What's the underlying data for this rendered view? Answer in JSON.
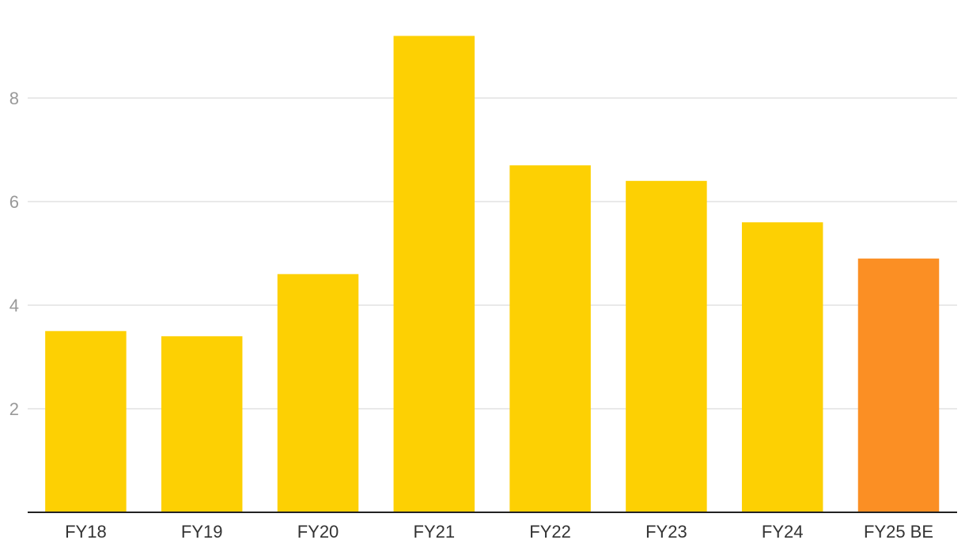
{
  "chart_data": {
    "type": "bar",
    "title": "",
    "xlabel": "",
    "ylabel": "",
    "categories": [
      "FY18",
      "FY19",
      "FY20",
      "FY21",
      "FY22",
      "FY23",
      "FY24",
      "FY25 BE"
    ],
    "values": [
      3.5,
      3.4,
      4.6,
      9.2,
      6.7,
      6.4,
      5.6,
      4.9
    ],
    "ylim": [
      0,
      9.8
    ],
    "yticks": [
      2,
      4,
      6,
      8
    ],
    "grid": true,
    "legend": "none",
    "colors": {
      "default_bar": "#fdd003",
      "highlight_bar": "#fb8f24",
      "highlight_category": "FY25 BE"
    }
  }
}
